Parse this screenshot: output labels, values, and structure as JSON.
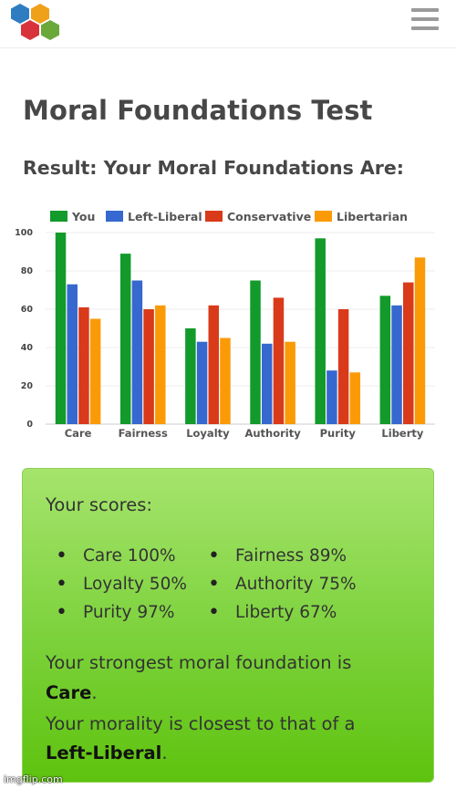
{
  "header": {
    "logo_icon": "hexagon-cluster-logo-icon",
    "menu_icon": "hamburger-menu-icon"
  },
  "page_title": "Moral Foundations Test",
  "result_heading": "Result: Your Moral Foundations Are:",
  "colors": {
    "you": "#129a2a",
    "left_liberal": "#3668cf",
    "conservative": "#d93a1a",
    "libertarian": "#fb9a07"
  },
  "chart_data": {
    "type": "bar",
    "categories": [
      "Care",
      "Fairness",
      "Loyalty",
      "Authority",
      "Purity",
      "Liberty"
    ],
    "series": [
      {
        "name": "You",
        "values": [
          100,
          89,
          50,
          75,
          97,
          67
        ]
      },
      {
        "name": "Left-Liberal",
        "values": [
          73,
          75,
          43,
          42,
          28,
          62
        ]
      },
      {
        "name": "Conservative",
        "values": [
          61,
          60,
          62,
          66,
          60,
          74
        ]
      },
      {
        "name": "Libertarian",
        "values": [
          55,
          62,
          45,
          43,
          27,
          87
        ]
      }
    ],
    "yticks": [
      "0",
      "20",
      "40",
      "60",
      "80",
      "100"
    ],
    "ylim": [
      0,
      100
    ],
    "grid": true,
    "legend": "top"
  },
  "scores": {
    "title": "Your scores:",
    "items": [
      "Care 100%",
      "Fairness 89%",
      "Loyalty 50%",
      "Authority 75%",
      "Purity 97%",
      "Liberty 67%"
    ],
    "strongest_prefix": "Your strongest moral foundation is",
    "strongest_value": "Care",
    "closest_prefix": "Your morality is closest to that of a",
    "closest_value": "Left-Liberal",
    "period": "."
  },
  "watermark": "imgflip.com"
}
